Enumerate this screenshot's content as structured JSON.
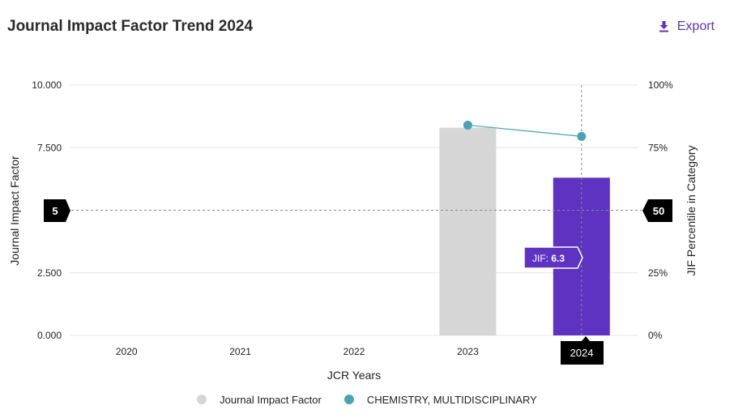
{
  "header": {
    "title": "Journal Impact Factor Trend 2024",
    "export_label": "Export"
  },
  "colors": {
    "bar_default": "#d6d6d6",
    "bar_highlight": "#5e33c1",
    "line": "#4aa3b5",
    "accent": "#5b34b8",
    "callout_bg": "#000000"
  },
  "chart_data": {
    "type": "bar",
    "title": "Journal Impact Factor Trend 2024",
    "xlabel": "JCR Years",
    "ylabel": "Journal Impact Factor",
    "y2label": "JIF Percentile in Category",
    "categories": [
      "2020",
      "2021",
      "2022",
      "2023",
      "2024"
    ],
    "ylim": [
      0,
      10
    ],
    "y_ticks": [
      "0.000",
      "2.500",
      "5",
      "7.500",
      "10.000"
    ],
    "y2lim": [
      0,
      100
    ],
    "y2_ticks": [
      "0%",
      "25%",
      "50",
      "75%",
      "100%"
    ],
    "grid": true,
    "series": [
      {
        "name": "Journal Impact Factor",
        "type": "bar",
        "values": [
          null,
          null,
          null,
          8.3,
          6.3
        ],
        "highlight_index": 4
      },
      {
        "name": "CHEMISTRY, MULTIDISCIPLINARY",
        "type": "line",
        "axis": "right",
        "values": [
          null,
          null,
          null,
          84,
          79.5
        ]
      }
    ],
    "crosshair": {
      "y_left_label": "5",
      "y_right_label": "50",
      "x_label": "2024",
      "x_index": 4,
      "y_value": 5
    },
    "tooltip": {
      "prefix": "JIF: ",
      "value": "6.3"
    },
    "legend_position": "bottom"
  }
}
